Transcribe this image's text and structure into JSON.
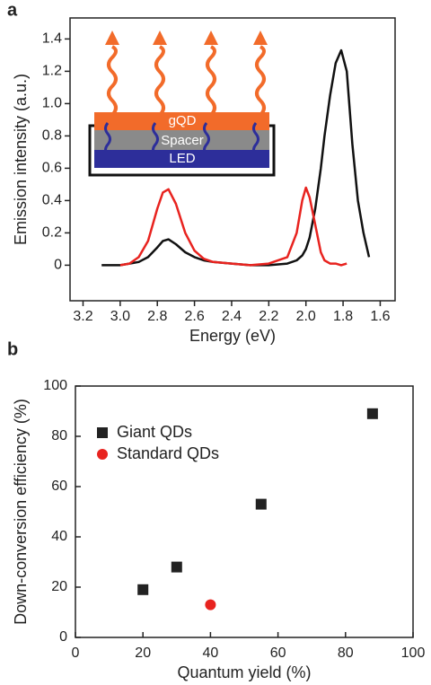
{
  "chart_data": [
    {
      "type": "line",
      "panel_label": "a",
      "xlabel": "Energy (eV)",
      "ylabel": "Emission intensity (a.u.)",
      "annotations": [
        "gQD",
        "Spacer",
        "LED"
      ],
      "x": [
        3.1,
        3.0,
        2.95,
        2.9,
        2.85,
        2.8,
        2.77,
        2.74,
        2.7,
        2.65,
        2.6,
        2.55,
        2.5,
        2.4,
        2.3,
        2.2,
        2.1,
        2.05,
        2.02,
        2.0,
        1.98,
        1.95,
        1.92,
        1.9,
        1.87,
        1.84,
        1.81,
        1.78,
        1.75,
        1.72,
        1.69,
        1.66
      ],
      "series": [
        {
          "color": "#111111",
          "values": [
            0,
            0,
            0.01,
            0.02,
            0.05,
            0.11,
            0.15,
            0.16,
            0.13,
            0.08,
            0.05,
            0.03,
            0.02,
            0.01,
            0,
            0,
            0.01,
            0.03,
            0.06,
            0.1,
            0.17,
            0.35,
            0.6,
            0.8,
            1.05,
            1.25,
            1.33,
            1.2,
            0.75,
            0.4,
            0.2,
            0.05
          ]
        },
        {
          "color": "#e8231f",
          "values": [
            null,
            0,
            0.01,
            0.05,
            0.15,
            0.35,
            0.45,
            0.47,
            0.38,
            0.2,
            0.09,
            0.04,
            0.02,
            0.01,
            0,
            0.01,
            0.05,
            0.2,
            0.4,
            0.48,
            0.42,
            0.25,
            0.08,
            0.03,
            0.01,
            0.01,
            0,
            0.01,
            null,
            null,
            null,
            null
          ]
        }
      ],
      "xlim": [
        3.27,
        1.52
      ],
      "xticks": [
        3.2,
        {
          "value": 3,
          "label": "3.0"
        },
        2.8,
        2.6,
        2.4,
        2.2,
        {
          "value": 2,
          "label": "2.0"
        },
        1.8,
        1.6
      ],
      "ylim": [
        -0.22,
        1.53
      ],
      "yticks": [
        0,
        0.2,
        0.4,
        0.6,
        0.8,
        {
          "value": 1,
          "label": "1.0"
        },
        1.2,
        1.4
      ]
    },
    {
      "type": "scatter",
      "panel_label": "b",
      "xlabel": "Quantum yield (%)",
      "ylabel": "Down-conversion efficiency (%)",
      "legend": "upper left",
      "series": [
        {
          "name": "Giant QDs",
          "color": "#222222",
          "marker": "square",
          "x": [
            20,
            30,
            55,
            88
          ],
          "values": [
            19,
            28,
            53,
            89
          ]
        },
        {
          "name": "Standard QDs",
          "color": "#e8231f",
          "marker": "circle",
          "x": [
            40
          ],
          "values": [
            13
          ]
        }
      ],
      "xlim": [
        0,
        100
      ],
      "xticks": [
        0,
        20,
        40,
        60,
        80,
        100
      ],
      "ylim": [
        0,
        100
      ],
      "yticks": [
        0,
        20,
        40,
        60,
        80,
        100
      ]
    }
  ]
}
